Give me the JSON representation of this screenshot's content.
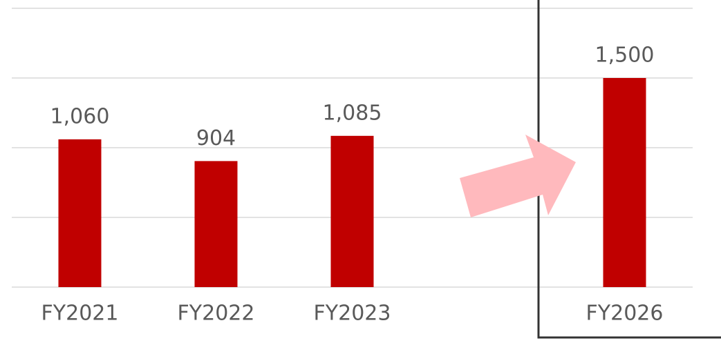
{
  "chart_data": {
    "type": "bar",
    "categories": [
      "FY2021",
      "FY2022",
      "FY2023",
      null,
      "FY2026"
    ],
    "values": [
      1060,
      904,
      1085,
      null,
      1500
    ],
    "value_labels": [
      "1,060",
      "904",
      "1,085",
      null,
      "1,500"
    ],
    "color": "#c00000",
    "ylim": [
      0,
      2000
    ],
    "yticks": [
      0,
      500,
      1000,
      1500,
      2000
    ],
    "grid": true
  }
}
